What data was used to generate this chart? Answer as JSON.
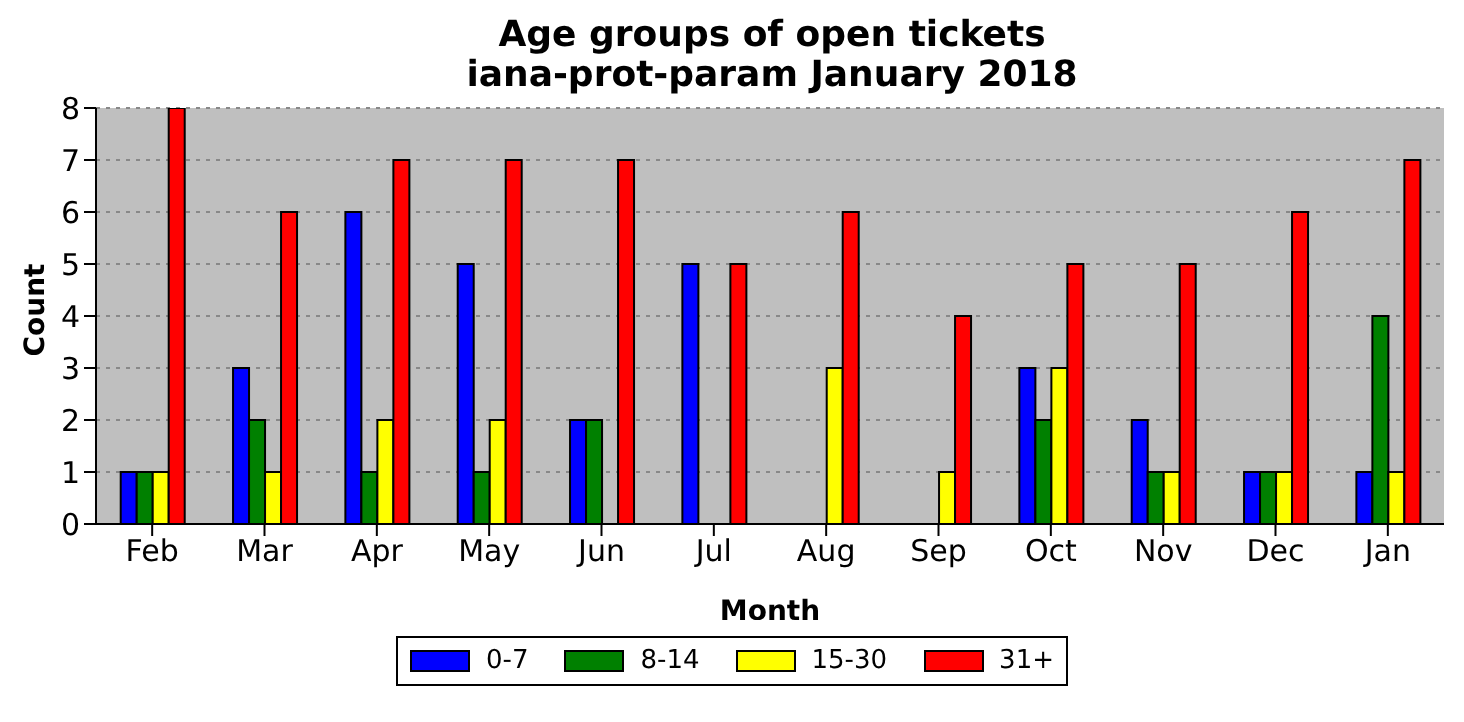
{
  "chart_data": {
    "type": "bar",
    "title": "Age groups of open tickets",
    "subtitle": "iana-prot-param January 2018",
    "xlabel": "Month",
    "ylabel": "Count",
    "categories": [
      "Feb",
      "Mar",
      "Apr",
      "May",
      "Jun",
      "Jul",
      "Aug",
      "Sep",
      "Oct",
      "Nov",
      "Dec",
      "Jan"
    ],
    "series": [
      {
        "name": "0-7",
        "color": "#0000ff",
        "values": [
          1,
          3,
          6,
          5,
          2,
          5,
          0,
          0,
          3,
          2,
          1,
          1
        ]
      },
      {
        "name": "8-14",
        "color": "#008000",
        "values": [
          1,
          2,
          1,
          1,
          2,
          0,
          0,
          0,
          2,
          1,
          1,
          4
        ]
      },
      {
        "name": "15-30",
        "color": "#ffff00",
        "values": [
          1,
          1,
          2,
          2,
          0,
          0,
          3,
          1,
          3,
          1,
          1,
          1
        ]
      },
      {
        "name": "31+",
        "color": "#ff0000",
        "values": [
          8,
          6,
          7,
          7,
          7,
          5,
          6,
          4,
          5,
          5,
          6,
          7
        ]
      }
    ],
    "ylim": [
      0,
      8
    ],
    "yticks": [
      0,
      1,
      2,
      3,
      4,
      5,
      6,
      7,
      8
    ],
    "grid": "y",
    "legend": "bottom"
  }
}
